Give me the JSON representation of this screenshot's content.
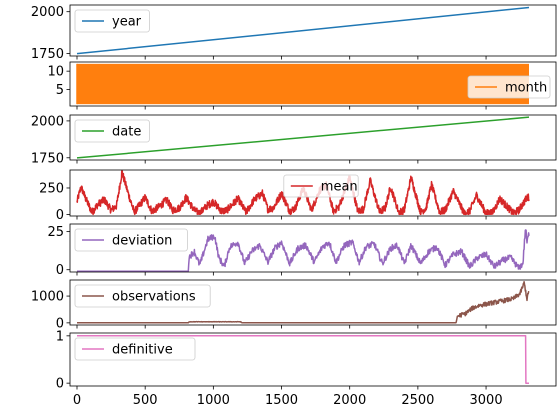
{
  "chart_data": {
    "type": "line",
    "layout": "stacked subplots sharing x axis",
    "x_range": [
      0,
      3315
    ],
    "x_ticks": [
      0,
      500,
      1000,
      1500,
      2000,
      2500,
      3000
    ],
    "x_tick_labels": [
      "0",
      "500",
      "1000",
      "1500",
      "2000",
      "2500",
      "3000"
    ],
    "subplots": [
      {
        "name": "year",
        "color": "#1f77b4",
        "legend_position": "upper-left",
        "ylim": [
          1735,
          2040
        ],
        "yticks": [
          1750,
          2000
        ],
        "ytick_labels": [
          "1750",
          "2000"
        ],
        "series": {
          "kind": "linear",
          "start": 1749,
          "end": 2025
        }
      },
      {
        "name": "month",
        "color": "#ff7f0e",
        "legend_position": "right",
        "ylim": [
          0.5,
          12.5
        ],
        "yticks": [
          5,
          10
        ],
        "ytick_labels": [
          "5",
          "10"
        ],
        "series": {
          "kind": "monthly-cycle",
          "min": 1,
          "max": 12
        }
      },
      {
        "name": "date",
        "color": "#2ca02c",
        "legend_position": "upper-left",
        "ylim": [
          1735,
          2040
        ],
        "yticks": [
          1750,
          2000
        ],
        "ytick_labels": [
          "1750",
          "2000"
        ],
        "series": {
          "kind": "linear",
          "start": 1749.04,
          "end": 2025.3
        }
      },
      {
        "name": "mean",
        "color": "#d62728",
        "legend_position": "upper-center",
        "ylim": [
          -15,
          420
        ],
        "yticks": [
          0,
          250
        ],
        "ytick_labels": [
          "0",
          "250"
        ],
        "series": {
          "kind": "solar-cycle",
          "points": [
            [
              0,
              120
            ],
            [
              30,
              260
            ],
            [
              60,
              160
            ],
            [
              110,
              20
            ],
            [
              150,
              90
            ],
            [
              200,
              140
            ],
            [
              250,
              40
            ],
            [
              290,
              80
            ],
            [
              330,
              400
            ],
            [
              380,
              180
            ],
            [
              420,
              20
            ],
            [
              460,
              90
            ],
            [
              500,
              160
            ],
            [
              550,
              30
            ],
            [
              600,
              70
            ],
            [
              660,
              140
            ],
            [
              700,
              40
            ],
            [
              750,
              60
            ],
            [
              800,
              160
            ],
            [
              860,
              40
            ],
            [
              900,
              10
            ],
            [
              950,
              80
            ],
            [
              1000,
              120
            ],
            [
              1060,
              30
            ],
            [
              1100,
              40
            ],
            [
              1180,
              150
            ],
            [
              1240,
              20
            ],
            [
              1300,
              140
            ],
            [
              1360,
              200
            ],
            [
              1400,
              50
            ],
            [
              1440,
              60
            ],
            [
              1500,
              200
            ],
            [
              1560,
              30
            ],
            [
              1600,
              60
            ],
            [
              1660,
              250
            ],
            [
              1720,
              40
            ],
            [
              1780,
              230
            ],
            [
              1830,
              280
            ],
            [
              1880,
              30
            ],
            [
              1920,
              70
            ],
            [
              2000,
              350
            ],
            [
              2060,
              30
            ],
            [
              2100,
              50
            ],
            [
              2150,
              320
            ],
            [
              2220,
              20
            ],
            [
              2260,
              60
            ],
            [
              2300,
              260
            ],
            [
              2360,
              20
            ],
            [
              2400,
              40
            ],
            [
              2450,
              350
            ],
            [
              2520,
              20
            ],
            [
              2560,
              60
            ],
            [
              2600,
              280
            ],
            [
              2660,
              20
            ],
            [
              2700,
              40
            ],
            [
              2760,
              220
            ],
            [
              2840,
              10
            ],
            [
              2880,
              30
            ],
            [
              2930,
              180
            ],
            [
              3000,
              10
            ],
            [
              3050,
              20
            ],
            [
              3100,
              150
            ],
            [
              3200,
              10
            ],
            [
              3240,
              40
            ],
            [
              3300,
              160
            ]
          ]
        }
      },
      {
        "name": "deviation",
        "color": "#9467bd",
        "legend_position": "upper-left",
        "ylim": [
          -1.5,
          30
        ],
        "yticks": [
          0,
          25
        ],
        "ytick_labels": [
          "0",
          "25"
        ],
        "series": {
          "kind": "piecewise",
          "points": [
            [
              0,
              -1
            ],
            [
              818,
              -1
            ],
            [
              820,
              8
            ],
            [
              860,
              12
            ],
            [
              900,
              3
            ],
            [
              960,
              20
            ],
            [
              1010,
              22
            ],
            [
              1040,
              8
            ],
            [
              1080,
              2
            ],
            [
              1120,
              15
            ],
            [
              1180,
              18
            ],
            [
              1230,
              4
            ],
            [
              1280,
              12
            ],
            [
              1340,
              16
            ],
            [
              1400,
              5
            ],
            [
              1450,
              14
            ],
            [
              1500,
              18
            ],
            [
              1560,
              4
            ],
            [
              1620,
              14
            ],
            [
              1680,
              16
            ],
            [
              1740,
              5
            ],
            [
              1800,
              15
            ],
            [
              1850,
              18
            ],
            [
              1900,
              5
            ],
            [
              1960,
              16
            ],
            [
              2020,
              18
            ],
            [
              2070,
              5
            ],
            [
              2120,
              15
            ],
            [
              2180,
              17
            ],
            [
              2240,
              4
            ],
            [
              2300,
              14
            ],
            [
              2350,
              16
            ],
            [
              2400,
              4
            ],
            [
              2450,
              16
            ],
            [
              2520,
              4
            ],
            [
              2580,
              12
            ],
            [
              2640,
              15
            ],
            [
              2700,
              3
            ],
            [
              2760,
              10
            ],
            [
              2820,
              12
            ],
            [
              2880,
              2
            ],
            [
              2940,
              8
            ],
            [
              3000,
              10
            ],
            [
              3060,
              2
            ],
            [
              3120,
              6
            ],
            [
              3180,
              8
            ],
            [
              3240,
              1
            ],
            [
              3270,
              4
            ],
            [
              3290,
              28
            ],
            [
              3300,
              18
            ],
            [
              3315,
              24
            ]
          ]
        }
      },
      {
        "name": "observations",
        "color": "#8c564b",
        "legend_position": "upper-left",
        "ylim": [
          -80,
          1600
        ],
        "yticks": [
          0,
          1000
        ],
        "ytick_labels": [
          "0",
          "1000"
        ],
        "series": {
          "kind": "piecewise",
          "points": [
            [
              0,
              1
            ],
            [
              818,
              1
            ],
            [
              820,
              40
            ],
            [
              1200,
              40
            ],
            [
              1210,
              1
            ],
            [
              2780,
              1
            ],
            [
              2790,
              250
            ],
            [
              2850,
              350
            ],
            [
              2900,
              550
            ],
            [
              2950,
              650
            ],
            [
              3000,
              700
            ],
            [
              3050,
              750
            ],
            [
              3100,
              800
            ],
            [
              3150,
              850
            ],
            [
              3200,
              900
            ],
            [
              3250,
              1100
            ],
            [
              3280,
              1500
            ],
            [
              3300,
              900
            ],
            [
              3315,
              1200
            ]
          ]
        }
      },
      {
        "name": "definitive",
        "color": "#e377c2",
        "legend_position": "upper-left",
        "ylim": [
          -0.06,
          1.06
        ],
        "yticks": [
          0,
          1
        ],
        "ytick_labels": [
          "0",
          "1"
        ],
        "series": {
          "kind": "piecewise",
          "points": [
            [
              0,
              1
            ],
            [
              3290,
              1
            ],
            [
              3292,
              0
            ],
            [
              3315,
              0
            ]
          ]
        }
      }
    ]
  }
}
